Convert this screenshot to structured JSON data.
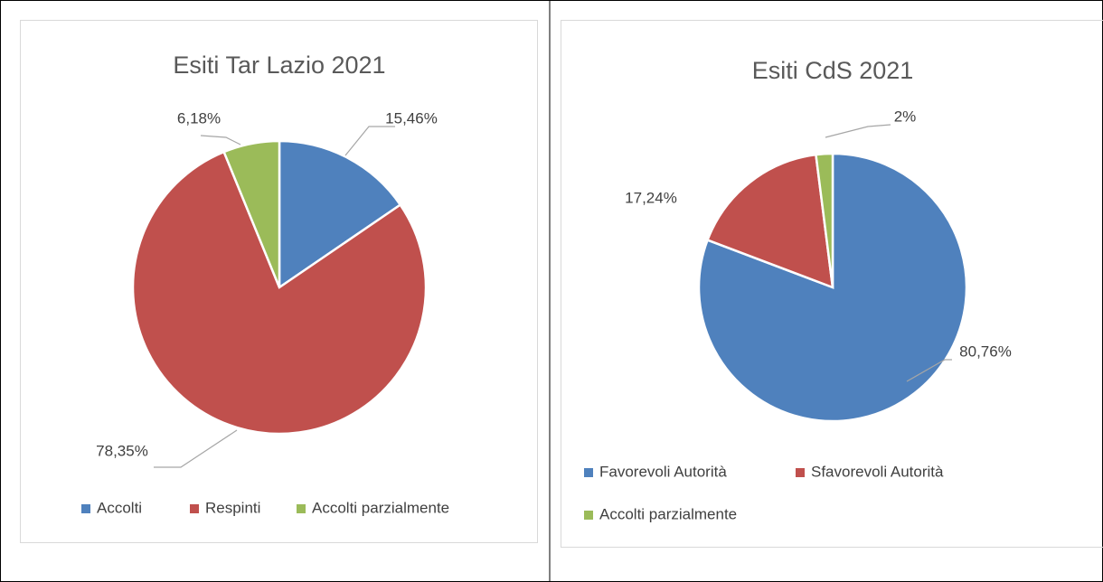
{
  "chart_data": [
    {
      "type": "pie",
      "title": "Esiti Tar Lazio 2021",
      "categories": [
        "Accolti",
        "Respinti",
        "Accolti parzialmente"
      ],
      "values": [
        15.46,
        78.35,
        6.18
      ],
      "value_labels": [
        "15,46%",
        "78,35%",
        "6,18%"
      ],
      "colors": [
        "#4f81bd",
        "#c0504d",
        "#9bbb59"
      ],
      "legend": "bottom"
    },
    {
      "type": "pie",
      "title": "Esiti CdS 2021",
      "categories": [
        "Favorevoli Autorità",
        "Sfavorevoli Autorità",
        "Accolti parzialmente"
      ],
      "values": [
        80.76,
        17.24,
        2
      ],
      "value_labels": [
        "80,76%",
        "17,24%",
        "2%"
      ],
      "colors": [
        "#4f81bd",
        "#c0504d",
        "#9bbb59"
      ],
      "legend": "bottom"
    }
  ]
}
